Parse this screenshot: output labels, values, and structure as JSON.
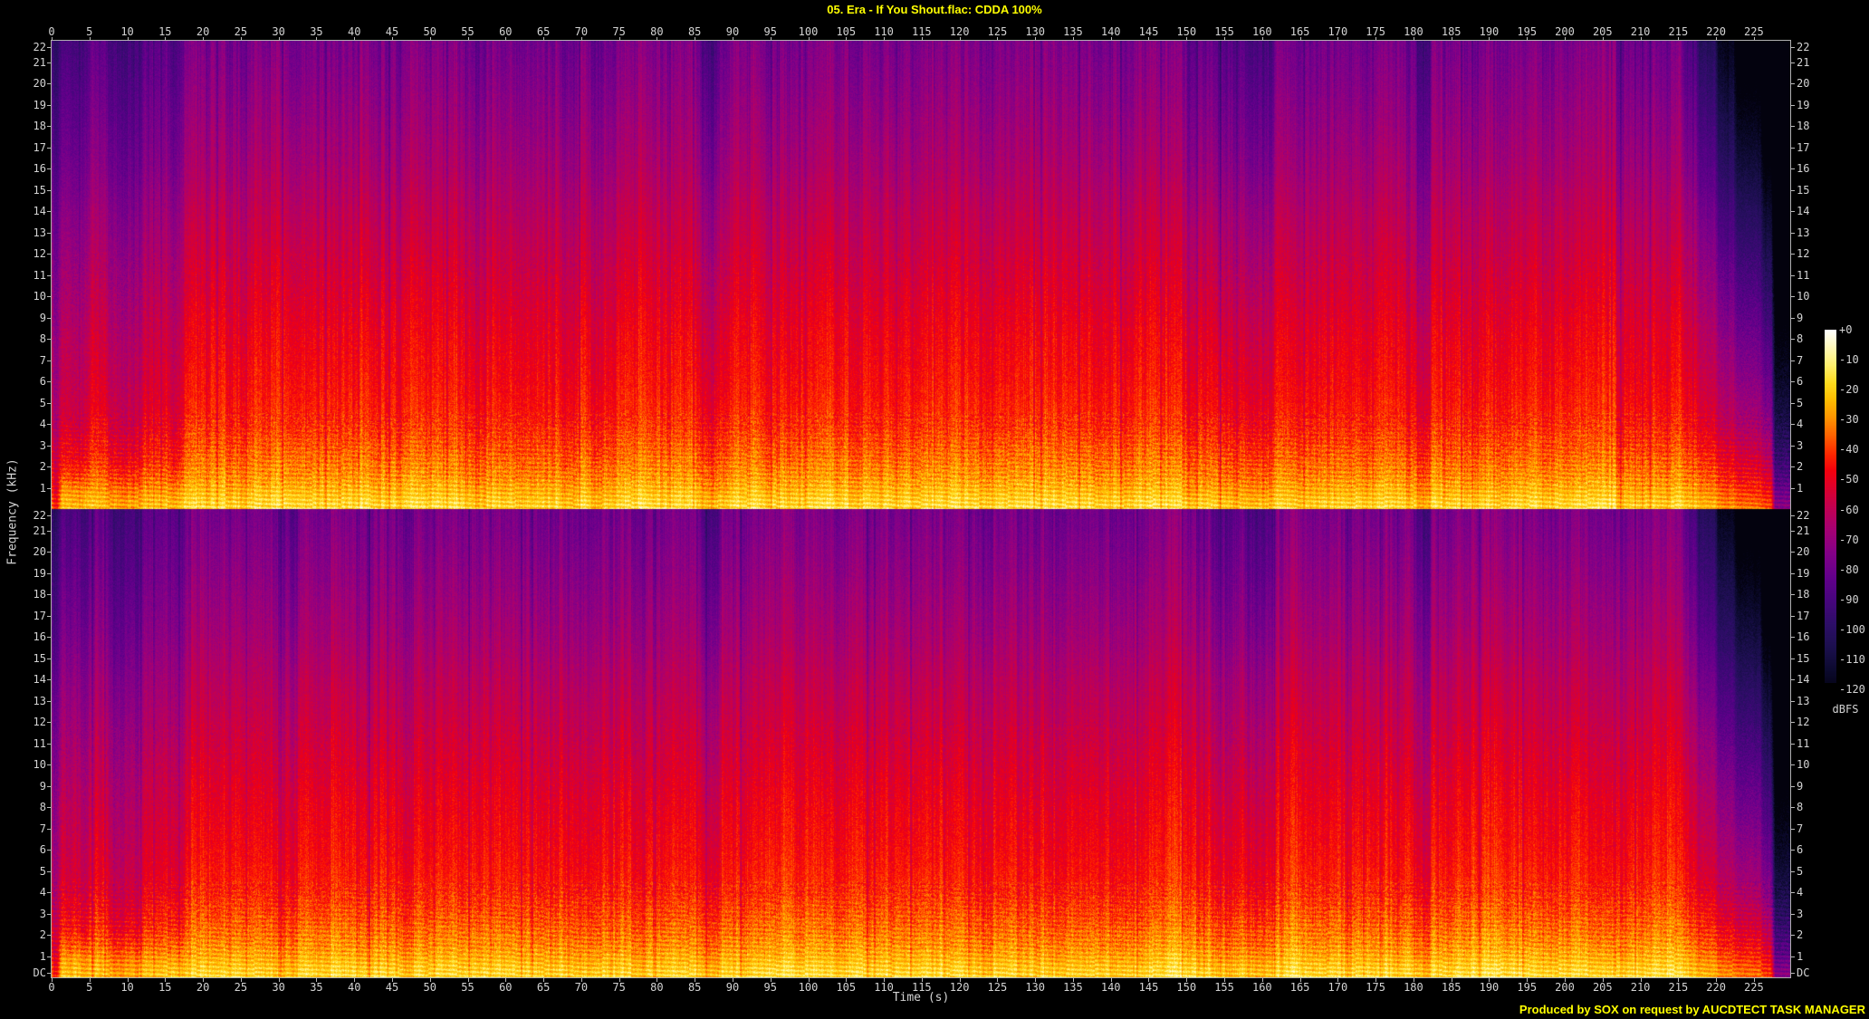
{
  "title": "05. Era - If You Shout.flac: CDDA 100%",
  "footer": "Produced by SOX on request by AUCDTECT TASK MANAGER",
  "colors": {
    "background": "#000000",
    "title_text": "#ffff00",
    "footer_text": "#ffff00",
    "axis_text": "#d4d4d4",
    "axis_line": "#b0b0b0"
  },
  "chart_data": {
    "type": "heatmap",
    "subtype": "stereo-audio-spectrogram",
    "title": "05. Era - If You Shout.flac: CDDA 100%",
    "xlabel": "Time (s)",
    "ylabel": "Frequency (kHz)",
    "colorbar_label": "dBFS",
    "channels": [
      "left",
      "right"
    ],
    "x_range_s": [
      0,
      229.8
    ],
    "x_ticks": [
      0,
      5,
      10,
      15,
      20,
      25,
      30,
      35,
      40,
      45,
      50,
      55,
      60,
      65,
      70,
      75,
      80,
      85,
      90,
      95,
      100,
      105,
      110,
      115,
      120,
      125,
      130,
      135,
      140,
      145,
      150,
      155,
      160,
      165,
      170,
      175,
      180,
      185,
      190,
      195,
      200,
      205,
      210,
      215,
      220,
      225
    ],
    "y_range_khz": [
      0,
      22
    ],
    "freq_ticks": [
      22,
      21,
      20,
      19,
      18,
      17,
      16,
      15,
      14,
      13,
      12,
      11,
      10,
      9,
      8,
      7,
      6,
      5,
      4,
      3,
      2,
      1
    ],
    "dc_label": "DC",
    "colorbar_ticks": [
      "+0",
      "-10",
      "-20",
      "-30",
      "-40",
      "-50",
      "-60",
      "-70",
      "-80",
      "-90",
      "-100",
      "-110",
      "-120"
    ],
    "colorbar_range_db": [
      0,
      -120
    ],
    "legend_position": "right",
    "grid": false,
    "palette_db_rgb": [
      [
        0,
        255,
        255,
        255
      ],
      [
        -4,
        255,
        252,
        210
      ],
      [
        -12,
        255,
        240,
        110
      ],
      [
        -18,
        255,
        220,
        30
      ],
      [
        -24,
        255,
        188,
        0
      ],
      [
        -30,
        255,
        148,
        0
      ],
      [
        -36,
        255,
        98,
        0
      ],
      [
        -42,
        255,
        42,
        0
      ],
      [
        -48,
        244,
        0,
        14
      ],
      [
        -54,
        220,
        0,
        46
      ],
      [
        -60,
        196,
        0,
        80
      ],
      [
        -68,
        166,
        0,
        116
      ],
      [
        -76,
        132,
        0,
        136
      ],
      [
        -84,
        100,
        0,
        140
      ],
      [
        -92,
        72,
        6,
        126
      ],
      [
        -100,
        46,
        14,
        104
      ],
      [
        -108,
        28,
        16,
        78
      ],
      [
        -116,
        12,
        10,
        46
      ],
      [
        -124,
        3,
        2,
        14
      ]
    ],
    "freq_profile_db": [
      [
        0,
        -17
      ],
      [
        0.3,
        -19
      ],
      [
        0.8,
        -24
      ],
      [
        1.5,
        -30
      ],
      [
        2.5,
        -36
      ],
      [
        4,
        -43
      ],
      [
        6,
        -47
      ],
      [
        8,
        -50
      ],
      [
        10,
        -54
      ],
      [
        12,
        -58
      ],
      [
        14,
        -62
      ],
      [
        16,
        -67
      ],
      [
        18,
        -71
      ],
      [
        20,
        -75
      ],
      [
        22,
        -79
      ]
    ],
    "time_envelope_db": [
      {
        "t0": 0,
        "t1": 1,
        "db": -24,
        "band": "all"
      },
      {
        "t0": 1,
        "t1": 3,
        "db": -11,
        "band": "mid_high"
      },
      {
        "t0": 3,
        "t1": 5,
        "db": -12,
        "band": "mid_high"
      },
      {
        "t0": 5,
        "t1": 7.5,
        "db": -6,
        "band": "mid_high"
      },
      {
        "t0": 7.5,
        "t1": 12,
        "db": -16,
        "band": "mid_high"
      },
      {
        "t0": 7.5,
        "t1": 12,
        "db": -6,
        "band": "low"
      },
      {
        "t0": 12,
        "t1": 15.5,
        "db": -7,
        "band": "mid_high"
      },
      {
        "t0": 15.5,
        "t1": 17.5,
        "db": -9,
        "band": "mid_high"
      },
      {
        "t0": 0,
        "t1": 17.5,
        "db": -4,
        "band": "low"
      },
      {
        "t0": 31.3,
        "t1": 33,
        "db": -8,
        "band": "high"
      },
      {
        "t0": 85.8,
        "t1": 88.2,
        "db": -15,
        "band": "high"
      },
      {
        "t0": 150,
        "t1": 153.5,
        "db": -6,
        "band": "high"
      },
      {
        "t0": 153.5,
        "t1": 155.3,
        "db": -13,
        "band": "high"
      },
      {
        "t0": 155.3,
        "t1": 157.6,
        "db": -7,
        "band": "high"
      },
      {
        "t0": 157.6,
        "t1": 161.6,
        "db": -15,
        "band": "high"
      },
      {
        "t0": 180.3,
        "t1": 182.3,
        "db": -16,
        "band": "high"
      },
      {
        "t0": 215.5,
        "t1": 217.5,
        "db": -10,
        "band": "fade"
      },
      {
        "t0": 217.5,
        "t1": 220,
        "db": -22,
        "band": "fade"
      },
      {
        "t0": 220,
        "t1": 222.5,
        "db": -34,
        "band": "fade"
      },
      {
        "t0": 222.5,
        "t1": 226,
        "db": -46,
        "band": "fade"
      },
      {
        "t0": 226,
        "t1": 230,
        "db": -60,
        "band": "fade"
      },
      {
        "t0": 227.5,
        "t1": 230,
        "db": -35,
        "band": "all"
      }
    ],
    "stripe_noise_db": 12,
    "speckle_noise_db": 8
  }
}
